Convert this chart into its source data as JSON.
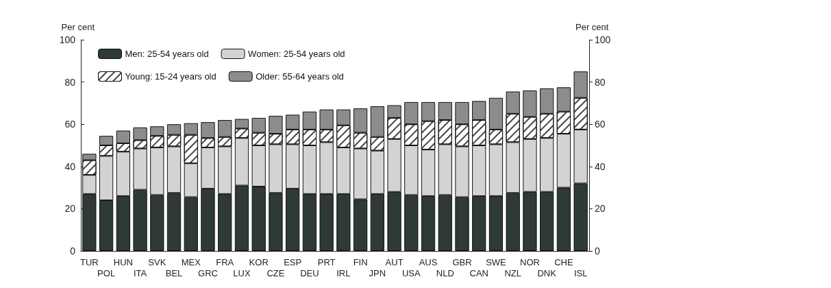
{
  "chart_data": {
    "type": "bar",
    "stacked": true,
    "ylabel": "Per cent",
    "y2label": "Per cent",
    "categories": [
      "TUR",
      "POL",
      "HUN",
      "ITA",
      "SVK",
      "BEL",
      "MEX",
      "GRC",
      "FRA",
      "LUX",
      "KOR",
      "CZE",
      "ESP",
      "DEU",
      "PRT",
      "IRL",
      "FIN",
      "JPN",
      "AUT",
      "USA",
      "AUS",
      "NLD",
      "GBR",
      "CAN",
      "SWE",
      "NZL",
      "NOR",
      "DNK",
      "CHE",
      "ISL"
    ],
    "series": [
      {
        "name": "Men: 25-54 years old",
        "color": "#2f3a35",
        "values": [
          27,
          24,
          26,
          29,
          26.5,
          27.5,
          25.5,
          29.5,
          27,
          31,
          30.5,
          27.5,
          29.5,
          27,
          27,
          27,
          24.5,
          27,
          28,
          26.5,
          26,
          26.5,
          25.5,
          26,
          26,
          27.5,
          28,
          28,
          30,
          32
        ]
      },
      {
        "name": "Women: 25-54 years old",
        "color": "#d3d3d3",
        "values": [
          9,
          21,
          21,
          19.5,
          22.5,
          22,
          16,
          19.5,
          22.5,
          22.5,
          19.5,
          23,
          21,
          23,
          24.5,
          22,
          24,
          20.5,
          25,
          23.5,
          22,
          24,
          24,
          24,
          24.5,
          24,
          25,
          25.5,
          25.5,
          25.5
        ]
      },
      {
        "name": "Young: 15-24 years old",
        "color": "#ffffff",
        "values": [
          7,
          5,
          4,
          4,
          5.5,
          5.5,
          13.5,
          4.5,
          4.5,
          4.5,
          6,
          5,
          7,
          7.5,
          6,
          10.5,
          7.5,
          6.5,
          10,
          10,
          13.5,
          11.5,
          10.5,
          12,
          7,
          13.5,
          10.5,
          11.5,
          10.5,
          15
        ]
      },
      {
        "name": "Older: 55-64 years old",
        "color": "#8c8c8c",
        "values": [
          3,
          4.5,
          6,
          6,
          4.5,
          5,
          5.5,
          7.5,
          8,
          4.5,
          7,
          8.5,
          7,
          8.5,
          9.5,
          7.5,
          11.5,
          14.5,
          6,
          10.5,
          9,
          8.5,
          10.5,
          9,
          15,
          10.5,
          12.5,
          12,
          11.5,
          12.5
        ]
      }
    ],
    "ylim": [
      0,
      100
    ],
    "yticks": [
      0,
      20,
      40,
      60,
      80,
      100
    ],
    "y2lim": [
      0,
      100
    ],
    "y2ticks": [
      0,
      20,
      40,
      60,
      80,
      100
    ],
    "grid": false,
    "legend": "top left"
  }
}
